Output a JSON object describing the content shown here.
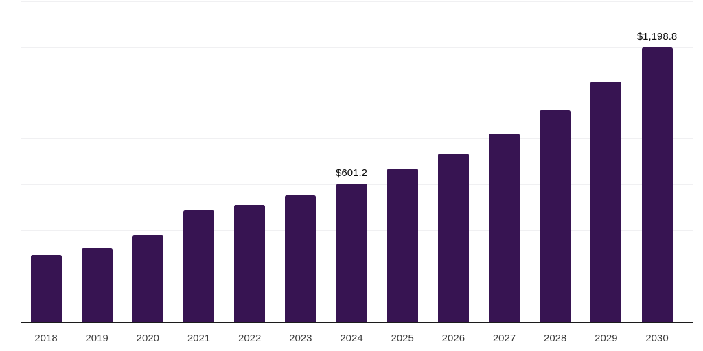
{
  "chart_data": {
    "type": "bar",
    "title": "",
    "xlabel": "",
    "ylabel": "",
    "categories": [
      "2018",
      "2019",
      "2020",
      "2021",
      "2022",
      "2023",
      "2024",
      "2025",
      "2026",
      "2027",
      "2028",
      "2029",
      "2030"
    ],
    "values": [
      291,
      321,
      377,
      486,
      509,
      551,
      601.2,
      668,
      735,
      822,
      922,
      1048,
      1198.8
    ],
    "data_labels": {
      "2024": "$601.2",
      "2030": "$1,198.8"
    },
    "ylim": [
      0,
      1400
    ],
    "gridline_values": [
      200,
      400,
      600,
      800,
      1000,
      1200,
      1400
    ],
    "grid": true,
    "legend_position": "none",
    "bar_color": "#371452",
    "gridline_color": "#f0f0f2",
    "axis_line_color": "#1c1c1c",
    "value_label_color": "#0d0d0d",
    "tick_label_color": "#3d3d3d"
  }
}
